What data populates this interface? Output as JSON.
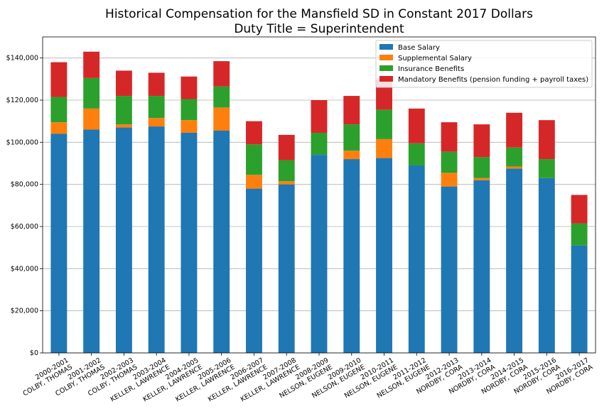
{
  "chart_data": {
    "type": "bar",
    "stacked": true,
    "title": "Historical Compensation for the Mansfield SD in Constant 2017 Dollars",
    "subtitle": "Duty Title = Superintendent",
    "xlabel": "",
    "ylabel": "",
    "ylim": [
      0,
      150000
    ],
    "yticks": [
      "$0",
      "$20,000",
      "$40,000",
      "$60,000",
      "$80,000",
      "$100,000",
      "$120,000",
      "$140,000"
    ],
    "ytick_values": [
      0,
      20000,
      40000,
      60000,
      80000,
      100000,
      120000,
      140000
    ],
    "grid": "horizontal",
    "legend_position": "top-right",
    "categories": [
      [
        "2000-2001",
        "COLBY, THOMAS"
      ],
      [
        "2001-2002",
        "COLBY, THOMAS"
      ],
      [
        "2002-2003",
        "COLBY, THOMAS"
      ],
      [
        "2003-2004",
        "KELLER, LAWRENCE"
      ],
      [
        "2004-2005",
        "KELLER, LAWRENCE"
      ],
      [
        "2005-2006",
        "KELLER, LAWRENCE"
      ],
      [
        "2006-2007",
        "KELLER, LAWRENCE"
      ],
      [
        "2007-2008",
        "KELLER, LAWRENCE"
      ],
      [
        "2008-2009",
        "NELSON, EUGENE"
      ],
      [
        "2009-2010",
        "NELSON, EUGENE"
      ],
      [
        "2010-2011",
        "NELSON, EUGENE"
      ],
      [
        "2011-2012",
        "NELSON, EUGENE"
      ],
      [
        "2012-2013",
        "NORDBY, CORA"
      ],
      [
        "2013-2014",
        "NORDBY, CORA"
      ],
      [
        "2014-2015",
        "NORDBY, CORA"
      ],
      [
        "2015-2016",
        "NORDBY, CORA"
      ],
      [
        "2016-2017",
        "NORDBY, CORA"
      ]
    ],
    "series": [
      {
        "name": "Base Salary",
        "color": "#1f77b4",
        "values": [
          104000,
          106000,
          107000,
          107500,
          104500,
          105500,
          78000,
          80000,
          94000,
          92000,
          92500,
          89000,
          79000,
          82000,
          87500,
          83000,
          51000
        ]
      },
      {
        "name": "Supplemental Salary",
        "color": "#ff7f0e",
        "values": [
          5500,
          10000,
          1500,
          4000,
          6000,
          11000,
          6500,
          1500,
          0,
          4000,
          9000,
          0,
          6500,
          1000,
          1000,
          0,
          0
        ]
      },
      {
        "name": "Insurance Benefits",
        "color": "#2ca02c",
        "values": [
          12000,
          14500,
          13500,
          10500,
          10000,
          10000,
          14500,
          10000,
          10500,
          12500,
          14000,
          10500,
          10000,
          10000,
          9000,
          9000,
          10500
        ]
      },
      {
        "name": "Mandatory Benefits (pension funding + payroll taxes)",
        "color": "#d62728",
        "values": [
          16500,
          12500,
          12000,
          11000,
          10700,
          12000,
          11000,
          12000,
          15500,
          13500,
          14500,
          16500,
          14000,
          15500,
          16500,
          18500,
          13500
        ]
      }
    ]
  }
}
